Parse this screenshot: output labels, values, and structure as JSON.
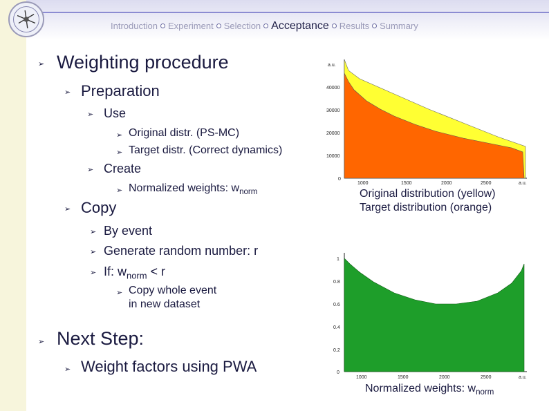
{
  "nav": {
    "items": [
      "Introduction",
      "Experiment",
      "Selection",
      "Acceptance",
      "Results",
      "Summary"
    ],
    "current": "Acceptance"
  },
  "bullets": {
    "weighting": "Weighting procedure",
    "preparation": "Preparation",
    "use": "Use",
    "original": "Original distr. (PS-MC)",
    "target": "Target distr.   (Correct dynamics)",
    "create": "Create",
    "normalized_prefix": "Normalized weights: w",
    "normalized_sub": "norm",
    "copy": "Copy",
    "by_event": "By event",
    "random": "Generate random number: r",
    "if_prefix": "If: w",
    "if_sub": "norm",
    "if_suffix": " < r",
    "copy_whole_1": "Copy whole event",
    "copy_whole_2": "in new dataset",
    "next_step": "Next Step:",
    "weight_factors": "Weight factors using PWA"
  },
  "plot1": {
    "unit_y": "a.u.",
    "unit_x": "a.u.",
    "y_ticks": [
      "40000",
      "30000",
      "20000",
      "10000",
      "0"
    ],
    "x_ticks": [
      "1000",
      "1500",
      "2000",
      "2500"
    ],
    "colors": {
      "original": "#ffff33",
      "target": "#ff6600"
    },
    "caption_1": "Original distribution (yellow)",
    "caption_2": "Target   distribution (orange)"
  },
  "plot2": {
    "y_ticks": [
      "1",
      "0.8",
      "0.6",
      "0.4",
      "0.2",
      "0"
    ],
    "x_ticks": [
      "1000",
      "1500",
      "2000",
      "2500"
    ],
    "unit_x": "a.u.",
    "color": "#1e9e2a",
    "caption_prefix": "Normalized weights: w",
    "caption_sub": "norm"
  }
}
